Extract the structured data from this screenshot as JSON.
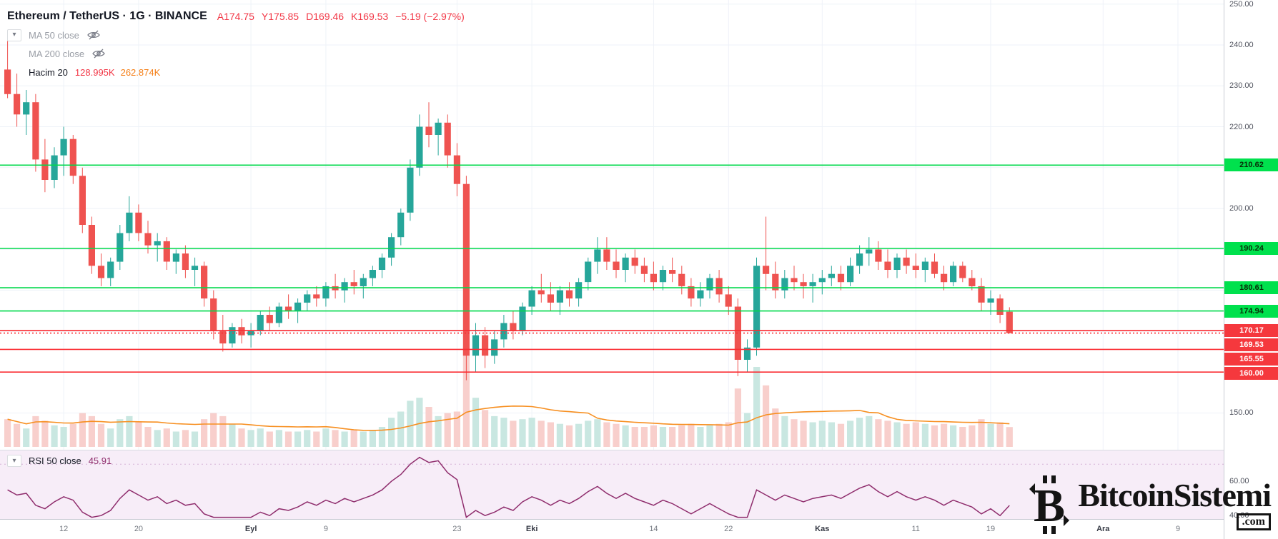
{
  "header": {
    "symbol_title": "Ethereum / TetherUS · 1G · BINANCE",
    "ohlc": {
      "o_label": "A",
      "o": "174.75",
      "h_label": "Y",
      "h": "175.85",
      "l_label": "D",
      "l": "169.46",
      "c_label": "K",
      "c": "169.53",
      "change": "−5.19 (−2.97%)"
    }
  },
  "legend": {
    "ma50_label": "MA 50 close",
    "ma200_label": "MA 200 close",
    "volume_label": "Hacim 20",
    "volume_value": "128.995K",
    "volume_ma_value": "262.874K",
    "rsi_label": "RSI 50 close",
    "rsi_value": "45.91",
    "chevron": "▾"
  },
  "watermark": {
    "name": "BitcoinSistemi",
    "tld": ".com",
    "symbol_letter": "B"
  },
  "rsi_scale": {
    "labels": [
      {
        "text": "60.00",
        "v": 60
      },
      {
        "text": "40.00",
        "v": 40
      }
    ]
  },
  "time_scale": {
    "ticks": [
      {
        "label": "12",
        "i": 6,
        "month": false
      },
      {
        "label": "20",
        "i": 14,
        "month": false
      },
      {
        "label": "Eyl",
        "i": 26,
        "month": true
      },
      {
        "label": "9",
        "i": 34,
        "month": false
      },
      {
        "label": "23",
        "i": 48,
        "month": false
      },
      {
        "label": "Eki",
        "i": 56,
        "month": true
      },
      {
        "label": "14",
        "i": 69,
        "month": false
      },
      {
        "label": "22",
        "i": 77,
        "month": false
      },
      {
        "label": "Kas",
        "i": 87,
        "month": true
      },
      {
        "label": "11",
        "i": 97,
        "month": false
      },
      {
        "label": "19",
        "i": 105,
        "month": false
      },
      {
        "label": "Ara",
        "i": 117,
        "month": true
      },
      {
        "label": "9",
        "i": 125,
        "month": false
      }
    ]
  },
  "colors": {
    "up": "#26a69a",
    "down": "#ef5350",
    "vol_up": "#c9e7e1",
    "vol_down": "#f8cfcc",
    "grid": "#eef2f8",
    "level_green": "#00d94c",
    "level_red": "#fb2d33",
    "vol_ma": "#f78f20",
    "rsi_line": "#8f2d6d",
    "ohlc_red": "#f23645",
    "value_orange": "#f57f17",
    "axis_text": "#50535e"
  },
  "chart_data": {
    "type": "candlestick",
    "title": "Ethereum / TetherUS 1G BINANCE",
    "price_axis": {
      "visible_min": 141,
      "visible_max": 251,
      "gridlines": [
        250,
        240,
        230,
        220,
        210,
        200,
        190,
        180,
        170,
        160,
        150
      ]
    },
    "volume_axis": {
      "max": 650
    },
    "levels": [
      {
        "price": 210.62,
        "color": "green",
        "style": "solid"
      },
      {
        "price": 190.24,
        "color": "green",
        "style": "solid"
      },
      {
        "price": 180.61,
        "color": "green",
        "style": "solid"
      },
      {
        "price": 174.94,
        "color": "green",
        "style": "solid"
      },
      {
        "price": 170.17,
        "color": "red",
        "style": "solid"
      },
      {
        "price": 169.53,
        "color": "red",
        "style": "dotted",
        "current": true
      },
      {
        "price": 165.55,
        "color": "red",
        "style": "solid"
      },
      {
        "price": 160.0,
        "color": "red",
        "style": "solid"
      }
    ],
    "candles": [
      [
        234,
        241,
        227,
        228
      ],
      [
        228,
        233,
        220,
        223
      ],
      [
        223,
        229,
        218,
        226
      ],
      [
        226,
        228,
        209,
        212
      ],
      [
        212,
        217,
        204,
        207
      ],
      [
        207,
        215,
        205,
        213
      ],
      [
        213,
        220,
        208,
        217
      ],
      [
        217,
        218,
        206,
        208
      ],
      [
        208,
        210,
        194,
        196
      ],
      [
        196,
        198,
        184,
        186
      ],
      [
        186,
        189,
        181,
        183
      ],
      [
        183,
        188,
        181,
        187
      ],
      [
        187,
        196,
        185,
        194
      ],
      [
        194,
        203,
        192,
        199
      ],
      [
        199,
        201,
        192,
        194
      ],
      [
        194,
        197,
        189,
        191
      ],
      [
        191,
        194,
        187,
        192
      ],
      [
        192,
        193,
        185,
        187
      ],
      [
        187,
        190,
        184,
        189
      ],
      [
        189,
        191,
        183,
        185
      ],
      [
        185,
        188,
        181,
        186
      ],
      [
        186,
        187,
        176,
        178
      ],
      [
        178,
        180,
        168,
        170
      ],
      [
        170,
        174,
        165,
        167
      ],
      [
        167,
        172,
        166,
        171
      ],
      [
        171,
        173,
        167,
        169
      ],
      [
        169,
        172,
        166,
        170
      ],
      [
        170,
        175,
        169,
        174
      ],
      [
        174,
        176,
        170,
        172
      ],
      [
        172,
        177,
        171,
        176
      ],
      [
        176,
        179,
        173,
        175
      ],
      [
        175,
        178,
        172,
        177
      ],
      [
        177,
        180,
        175,
        179
      ],
      [
        179,
        181,
        176,
        178
      ],
      [
        178,
        182,
        176,
        181
      ],
      [
        181,
        184,
        178,
        180
      ],
      [
        180,
        183,
        177,
        182
      ],
      [
        182,
        185,
        179,
        181
      ],
      [
        181,
        184,
        178,
        183
      ],
      [
        183,
        186,
        181,
        185
      ],
      [
        185,
        189,
        183,
        188
      ],
      [
        188,
        194,
        186,
        193
      ],
      [
        193,
        200,
        191,
        199
      ],
      [
        199,
        212,
        197,
        210
      ],
      [
        210,
        223,
        208,
        220
      ],
      [
        220,
        226,
        215,
        218
      ],
      [
        218,
        222,
        213,
        221
      ],
      [
        221,
        223,
        210,
        213
      ],
      [
        213,
        216,
        203,
        206
      ],
      [
        206,
        208,
        158,
        164
      ],
      [
        164,
        172,
        160,
        169
      ],
      [
        169,
        171,
        161,
        164
      ],
      [
        164,
        170,
        162,
        168
      ],
      [
        168,
        174,
        166,
        172
      ],
      [
        172,
        175,
        168,
        170
      ],
      [
        170,
        177,
        169,
        176
      ],
      [
        176,
        181,
        174,
        180
      ],
      [
        180,
        184,
        177,
        179
      ],
      [
        179,
        182,
        175,
        177
      ],
      [
        177,
        181,
        174,
        180
      ],
      [
        180,
        182,
        176,
        178
      ],
      [
        178,
        183,
        176,
        182
      ],
      [
        182,
        188,
        180,
        187
      ],
      [
        187,
        193,
        184,
        190
      ],
      [
        190,
        193,
        185,
        187
      ],
      [
        187,
        190,
        183,
        185
      ],
      [
        185,
        189,
        182,
        188
      ],
      [
        188,
        190,
        184,
        186
      ],
      [
        186,
        188,
        182,
        184
      ],
      [
        184,
        187,
        180,
        182
      ],
      [
        182,
        186,
        180,
        185
      ],
      [
        185,
        188,
        182,
        184
      ],
      [
        184,
        186,
        179,
        181
      ],
      [
        181,
        183,
        176,
        178
      ],
      [
        178,
        182,
        176,
        180
      ],
      [
        180,
        184,
        178,
        183
      ],
      [
        183,
        185,
        177,
        179
      ],
      [
        179,
        181,
        174,
        176
      ],
      [
        176,
        178,
        159,
        163
      ],
      [
        163,
        168,
        160,
        166
      ],
      [
        166,
        188,
        164,
        186
      ],
      [
        186,
        198,
        180,
        184
      ],
      [
        184,
        187,
        178,
        180
      ],
      [
        180,
        185,
        178,
        183
      ],
      [
        183,
        186,
        180,
        182
      ],
      [
        182,
        184,
        178,
        181
      ],
      [
        181,
        184,
        177,
        182
      ],
      [
        182,
        185,
        179,
        183
      ],
      [
        183,
        186,
        181,
        184
      ],
      [
        184,
        186,
        180,
        182
      ],
      [
        182,
        188,
        181,
        186
      ],
      [
        186,
        191,
        184,
        189
      ],
      [
        189,
        193,
        186,
        190
      ],
      [
        190,
        192,
        185,
        187
      ],
      [
        187,
        190,
        183,
        185
      ],
      [
        185,
        189,
        183,
        188
      ],
      [
        188,
        190,
        184,
        186
      ],
      [
        186,
        189,
        183,
        185
      ],
      [
        185,
        188,
        182,
        187
      ],
      [
        187,
        189,
        183,
        184
      ],
      [
        184,
        186,
        180,
        182
      ],
      [
        182,
        187,
        181,
        186
      ],
      [
        186,
        187,
        182,
        183
      ],
      [
        183,
        185,
        180,
        181
      ],
      [
        181,
        183,
        175,
        177
      ],
      [
        177,
        180,
        174,
        178
      ],
      [
        178,
        179,
        172,
        174
      ],
      [
        174.75,
        175.85,
        169.46,
        169.53
      ]
    ],
    "volumes": [
      180,
      150,
      120,
      200,
      170,
      140,
      130,
      150,
      220,
      200,
      150,
      120,
      180,
      200,
      160,
      130,
      110,
      120,
      100,
      110,
      100,
      180,
      220,
      200,
      150,
      120,
      110,
      120,
      100,
      110,
      100,
      100,
      110,
      100,
      120,
      110,
      100,
      110,
      100,
      110,
      130,
      190,
      230,
      300,
      320,
      260,
      200,
      220,
      230,
      650,
      320,
      240,
      200,
      190,
      170,
      180,
      190,
      170,
      160,
      150,
      140,
      150,
      170,
      180,
      160,
      150,
      140,
      130,
      130,
      140,
      130,
      130,
      140,
      150,
      130,
      140,
      150,
      160,
      380,
      220,
      520,
      400,
      250,
      200,
      180,
      170,
      160,
      170,
      160,
      150,
      170,
      190,
      200,
      180,
      170,
      160,
      150,
      160,
      150,
      140,
      150,
      140,
      130,
      140,
      180,
      150,
      160,
      129
    ],
    "rsi": {
      "current": 45.91,
      "axis": {
        "min": 38,
        "max": 78
      },
      "values": [
        55,
        52,
        53,
        46,
        44,
        48,
        51,
        49,
        42,
        38,
        40,
        43,
        50,
        55,
        52,
        49,
        51,
        47,
        49,
        46,
        47,
        41,
        36,
        34,
        38,
        37,
        38,
        42,
        40,
        44,
        43,
        45,
        48,
        46,
        49,
        47,
        50,
        48,
        50,
        52,
        55,
        60,
        64,
        70,
        74,
        71,
        72,
        65,
        61,
        39,
        43,
        40,
        42,
        45,
        43,
        48,
        51,
        49,
        46,
        49,
        47,
        50,
        54,
        57,
        53,
        50,
        53,
        50,
        48,
        46,
        49,
        47,
        44,
        41,
        44,
        47,
        44,
        41,
        36,
        39,
        55,
        52,
        49,
        52,
        50,
        48,
        50,
        51,
        52,
        50,
        53,
        56,
        58,
        54,
        51,
        54,
        51,
        49,
        51,
        49,
        46,
        49,
        47,
        45,
        41,
        44,
        40,
        45.91
      ]
    }
  }
}
